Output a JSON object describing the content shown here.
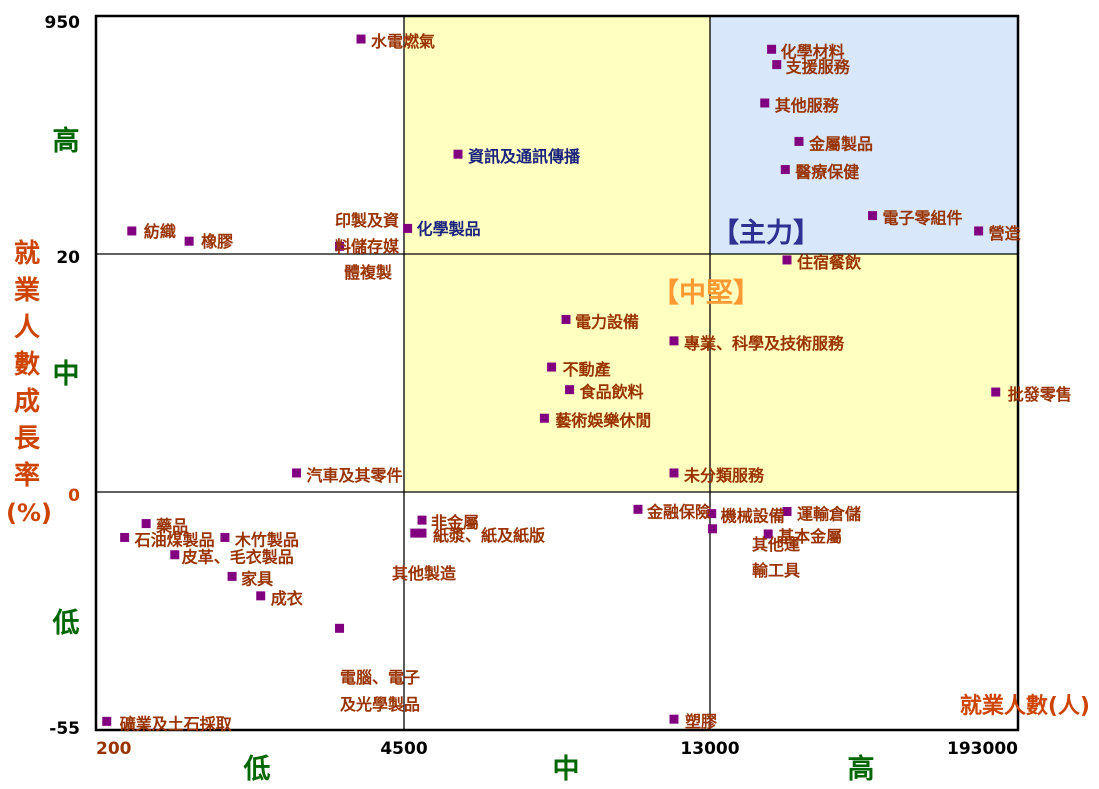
{
  "chart_data": {
    "type": "scatter",
    "subtitle": "",
    "xlabel": "就業人數(人)",
    "ylabel": "就業人數成長率(%)",
    "x_ticks": [
      "200",
      "4500",
      "13000",
      "193000"
    ],
    "y_ticks": [
      "950",
      "20",
      "0",
      "-55"
    ],
    "x_band_labels": [
      "低",
      "中",
      "高"
    ],
    "y_band_labels": [
      "高",
      "中",
      "低"
    ],
    "quadrant_labels": {
      "main": "【主力】",
      "mid": "【中堅】"
    },
    "note": "axes are piecewise: each tick pair spans one quadrant band",
    "points": [
      {
        "name": "水電燃氣",
        "x": 3900,
        "y": 860
      },
      {
        "name": "資訊及通訊傳播",
        "x": 6000,
        "y": 410
      },
      {
        "name": "化學製品",
        "x": 4600,
        "y": 120
      },
      {
        "name": "印製及資料儲存媒體複製",
        "x": 3600,
        "y": 50
      },
      {
        "name": "紡織",
        "x": 700,
        "y": 110
      },
      {
        "name": "橡膠",
        "x": 1500,
        "y": 70
      },
      {
        "name": "化學材料",
        "x": 49000,
        "y": 820
      },
      {
        "name": "支援服務",
        "x": 52000,
        "y": 760
      },
      {
        "name": "其他服務",
        "x": 45000,
        "y": 610
      },
      {
        "name": "金屬製品",
        "x": 65000,
        "y": 460
      },
      {
        "name": "醫療保健",
        "x": 57000,
        "y": 350
      },
      {
        "name": "電子零組件",
        "x": 108000,
        "y": 170
      },
      {
        "name": "營造",
        "x": 170000,
        "y": 110
      },
      {
        "name": "住宿餐飲",
        "x": 58000,
        "y": 19.5
      },
      {
        "name": "電力設備",
        "x": 9000,
        "y": 14.5
      },
      {
        "name": "專業、科學及技術服務",
        "x": 12000,
        "y": 12.7
      },
      {
        "name": "不動產",
        "x": 8600,
        "y": 10.5
      },
      {
        "name": "食品飲料",
        "x": 9100,
        "y": 8.6
      },
      {
        "name": "藝術娛樂休閒",
        "x": 8400,
        "y": 6.2
      },
      {
        "name": "批發零售",
        "x": 180000,
        "y": 8.4
      },
      {
        "name": "汽車及其零件",
        "x": 3000,
        "y": 1.6
      },
      {
        "name": "未分類服務",
        "x": 12000,
        "y": 1.6
      },
      {
        "name": "金融保險",
        "x": 11000,
        "y": -4
      },
      {
        "name": "機械設備",
        "x": 14000,
        "y": -5
      },
      {
        "name": "運輸倉儲",
        "x": 58000,
        "y": -4.5
      },
      {
        "name": "非金屬",
        "x": 5000,
        "y": -6.5
      },
      {
        "name": "紙漿、紙及紙版",
        "x": 5000,
        "y": -9.5
      },
      {
        "name": "其他製造",
        "x": 4800,
        "y": -9.5
      },
      {
        "name": "其他運輸工具",
        "x": 14500,
        "y": -8.5
      },
      {
        "name": "基本金屬",
        "x": 47000,
        "y": -9.7
      },
      {
        "name": "藥品",
        "x": 900,
        "y": -7.3
      },
      {
        "name": "石油煤製品",
        "x": 600,
        "y": -10.5
      },
      {
        "name": "木竹製品",
        "x": 2000,
        "y": -10.5
      },
      {
        "name": "皮革、毛衣製品",
        "x": 1300,
        "y": -14.5
      },
      {
        "name": "家具",
        "x": 2100,
        "y": -19.5
      },
      {
        "name": "成衣",
        "x": 2500,
        "y": -24
      },
      {
        "name": "電腦、電子及光學製品",
        "x": 3600,
        "y": -31.5
      },
      {
        "name": "礦業及土石採取",
        "x": 350,
        "y": -53
      },
      {
        "name": "塑膠",
        "x": 12000,
        "y": -52.5
      }
    ]
  }
}
